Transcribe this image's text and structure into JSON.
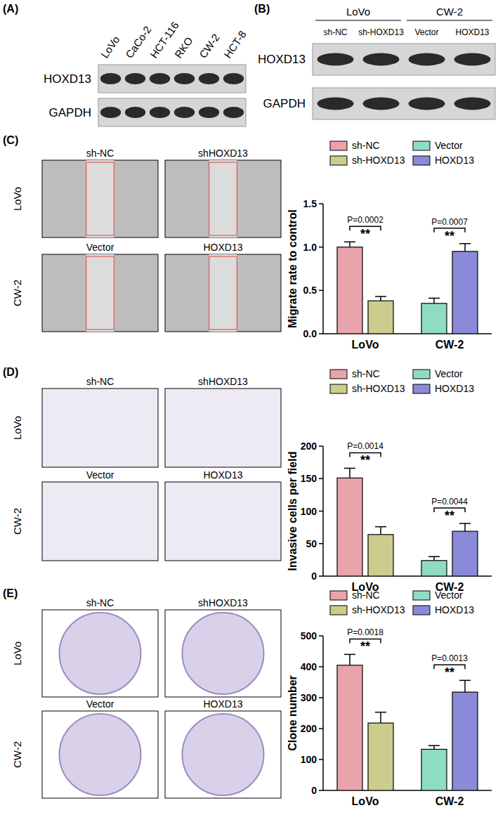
{
  "panels": {
    "A": {
      "label": "(A)",
      "lanes": [
        "LoVo",
        "CaCo-2",
        "HCT-116",
        "RKO",
        "CW-2",
        "HCT-8"
      ],
      "rows": [
        "HOXD13",
        "GAPDH"
      ]
    },
    "B": {
      "label": "(B)",
      "groups": [
        {
          "name": "LoVo",
          "lanes": [
            "sh-NC",
            "sh-HOXD13"
          ]
        },
        {
          "name": "CW-2",
          "lanes": [
            "Vector",
            "HOXD13"
          ]
        }
      ],
      "rows": [
        "HOXD13",
        "GAPDH"
      ]
    },
    "C": {
      "label": "(C)",
      "rows": [
        "LoVo",
        "CW-2"
      ],
      "images": [
        [
          "sh-NC",
          "shHOXD13"
        ],
        [
          "Vector",
          "HOXD13"
        ]
      ]
    },
    "D": {
      "label": "(D)",
      "rows": [
        "LoVo",
        "CW-2"
      ],
      "images": [
        [
          "sh-NC",
          "shHOXD13"
        ],
        [
          "Vector",
          "HOXD13"
        ]
      ]
    },
    "E": {
      "label": "(E)",
      "rows": [
        "LoVo",
        "CW-2"
      ],
      "images": [
        [
          "sh-NC",
          "shHOXD13"
        ],
        [
          "Vector",
          "HOXD13"
        ]
      ]
    }
  },
  "chart_data": [
    {
      "type": "bar",
      "y_label": "Migrate rate to control",
      "categories": [
        "LoVo",
        "CW-2"
      ],
      "series": [
        {
          "name": "sh-NC",
          "color": "#e9a3ab",
          "values": [
            1.0,
            null
          ],
          "errors": [
            0.06,
            null
          ]
        },
        {
          "name": "sh-HOXD13",
          "color": "#cccc8e",
          "values": [
            0.38,
            null
          ],
          "errors": [
            0.05,
            null
          ]
        },
        {
          "name": "Vector",
          "color": "#8fdcc4",
          "values": [
            null,
            0.35
          ],
          "errors": [
            null,
            0.06
          ]
        },
        {
          "name": "HOXD13",
          "color": "#8a8ad8",
          "values": [
            null,
            0.95
          ],
          "errors": [
            null,
            0.09
          ]
        }
      ],
      "ylim": [
        0,
        1.5
      ],
      "yticks": [
        {
          "value": 0,
          "label": "0.0"
        },
        {
          "value": 0.5,
          "label": "0.5"
        },
        {
          "value": 1,
          "label": "1.0"
        },
        {
          "value": 1.5,
          "label": "1.5"
        }
      ],
      "grid": false,
      "legend": "top",
      "annotations": [
        {
          "category": 0,
          "p": "P=0.0002",
          "sig": "**"
        },
        {
          "category": 1,
          "p": "P=0.0007",
          "sig": "**"
        }
      ]
    },
    {
      "type": "bar",
      "y_label": "Invasive cells per field",
      "categories": [
        "LoVo",
        "CW-2"
      ],
      "series": [
        {
          "name": "sh-NC",
          "color": "#e9a3ab",
          "values": [
            151,
            null
          ],
          "errors": [
            15,
            null
          ]
        },
        {
          "name": "sh-HOXD13",
          "color": "#cccc8e",
          "values": [
            64,
            null
          ],
          "errors": [
            12,
            null
          ]
        },
        {
          "name": "Vector",
          "color": "#8fdcc4",
          "values": [
            null,
            24
          ],
          "errors": [
            null,
            6
          ]
        },
        {
          "name": "HOXD13",
          "color": "#8a8ad8",
          "values": [
            null,
            69
          ],
          "errors": [
            null,
            12
          ]
        }
      ],
      "ylim": [
        0,
        200
      ],
      "yticks": [
        0,
        50,
        100,
        150,
        200
      ],
      "grid": false,
      "legend": "top",
      "annotations": [
        {
          "category": 0,
          "p": "P=0.0014",
          "sig": "**"
        },
        {
          "category": 1,
          "p": "P=0.0044",
          "sig": "**"
        }
      ]
    },
    {
      "type": "bar",
      "y_label": "Clone number",
      "categories": [
        "LoVo",
        "CW-2"
      ],
      "series": [
        {
          "name": "sh-NC",
          "color": "#e9a3ab",
          "values": [
            405,
            null
          ],
          "errors": [
            35,
            null
          ]
        },
        {
          "name": "sh-HOXD13",
          "color": "#cccc8e",
          "values": [
            218,
            null
          ],
          "errors": [
            35,
            null
          ]
        },
        {
          "name": "Vector",
          "color": "#8fdcc4",
          "values": [
            null,
            133
          ],
          "errors": [
            null,
            12
          ]
        },
        {
          "name": "HOXD13",
          "color": "#8a8ad8",
          "values": [
            null,
            318
          ],
          "errors": [
            null,
            38
          ]
        }
      ],
      "ylim": [
        0,
        500
      ],
      "yticks": [
        0,
        100,
        200,
        300,
        400,
        500
      ],
      "grid": false,
      "legend": "top",
      "annotations": [
        {
          "category": 0,
          "p": "P=0.0018",
          "sig": "**"
        },
        {
          "category": 1,
          "p": "P=0.0013",
          "sig": "**"
        }
      ]
    }
  ]
}
